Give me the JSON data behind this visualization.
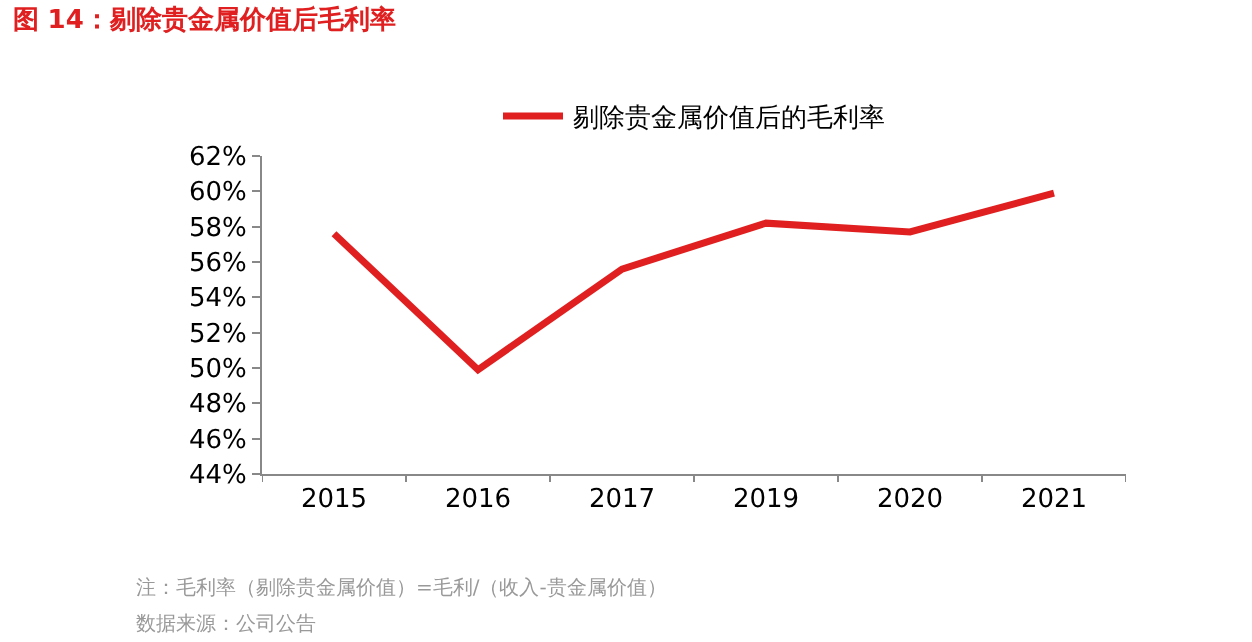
{
  "chart_data": {
    "type": "line",
    "title": "图 14：剔除贵金属价值后毛利率",
    "categories": [
      "2015",
      "2016",
      "2017",
      "2019",
      "2020",
      "2021"
    ],
    "series": [
      {
        "name": "剔除贵金属价值后的毛利率",
        "color": "#e02020",
        "values": [
          57.6,
          49.9,
          55.6,
          58.2,
          57.7,
          59.9
        ]
      }
    ],
    "ylim": [
      44,
      62
    ],
    "yticks": [
      {
        "value": 44,
        "label": "44%"
      },
      {
        "value": 46,
        "label": "46%"
      },
      {
        "value": 48,
        "label": "48%"
      },
      {
        "value": 50,
        "label": "50%"
      },
      {
        "value": 52,
        "label": "52%"
      },
      {
        "value": 54,
        "label": "54%"
      },
      {
        "value": 56,
        "label": "56%"
      },
      {
        "value": 58,
        "label": "58%"
      },
      {
        "value": 60,
        "label": "60%"
      },
      {
        "value": 62,
        "label": "62%"
      }
    ],
    "annotations": [
      "注：毛利率（剔除贵金属价值）=毛利/（收入-贵金属价值）",
      "数据来源：公司公告"
    ],
    "legend": "top",
    "marker": "none",
    "line_style": "solid"
  }
}
